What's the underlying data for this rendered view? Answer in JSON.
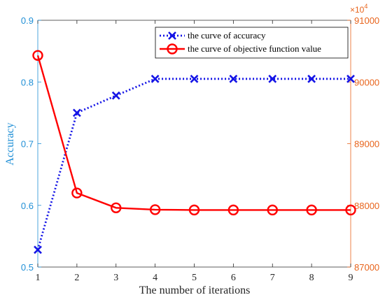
{
  "chart_data": {
    "type": "line",
    "xlabel": "The number of iterations",
    "x": [
      1,
      2,
      3,
      4,
      5,
      6,
      7,
      8,
      9
    ],
    "xticks": [
      "1",
      "2",
      "3",
      "4",
      "5",
      "6",
      "7",
      "8",
      "9"
    ],
    "xlim": [
      1,
      9
    ],
    "left_axis": {
      "label": "Accuracy",
      "ylim": [
        0.5,
        0.9
      ],
      "ticks": [
        "0.5",
        "0.6",
        "0.7",
        "0.8",
        "0.9"
      ],
      "tick_values": [
        0.5,
        0.6,
        0.7,
        0.8,
        0.9
      ],
      "color": "#1f8fd6"
    },
    "right_axis": {
      "label": "",
      "ylim": [
        87000,
        91000
      ],
      "ticks": [
        "87000",
        "88000",
        "89000",
        "90000",
        "91000"
      ],
      "tick_values": [
        87000,
        88000,
        89000,
        90000,
        91000
      ],
      "multiplier": "×10",
      "multiplier_exp": "4",
      "color": "#e8641c"
    },
    "series": [
      {
        "name": "the curve of accuracy",
        "axis": "left",
        "values": [
          0.528,
          0.75,
          0.778,
          0.805,
          0.805,
          0.805,
          0.805,
          0.805,
          0.805
        ],
        "color": "#1414e6",
        "marker": "x",
        "line": "dotted"
      },
      {
        "name": "the curve of objective function value",
        "axis": "right",
        "values": [
          90430,
          88200,
          87960,
          87930,
          87925,
          87925,
          87925,
          87925,
          87925
        ],
        "color": "#ff0000",
        "marker": "circle",
        "line": "solid"
      }
    ],
    "legend_position": "top-right",
    "grid": false
  }
}
